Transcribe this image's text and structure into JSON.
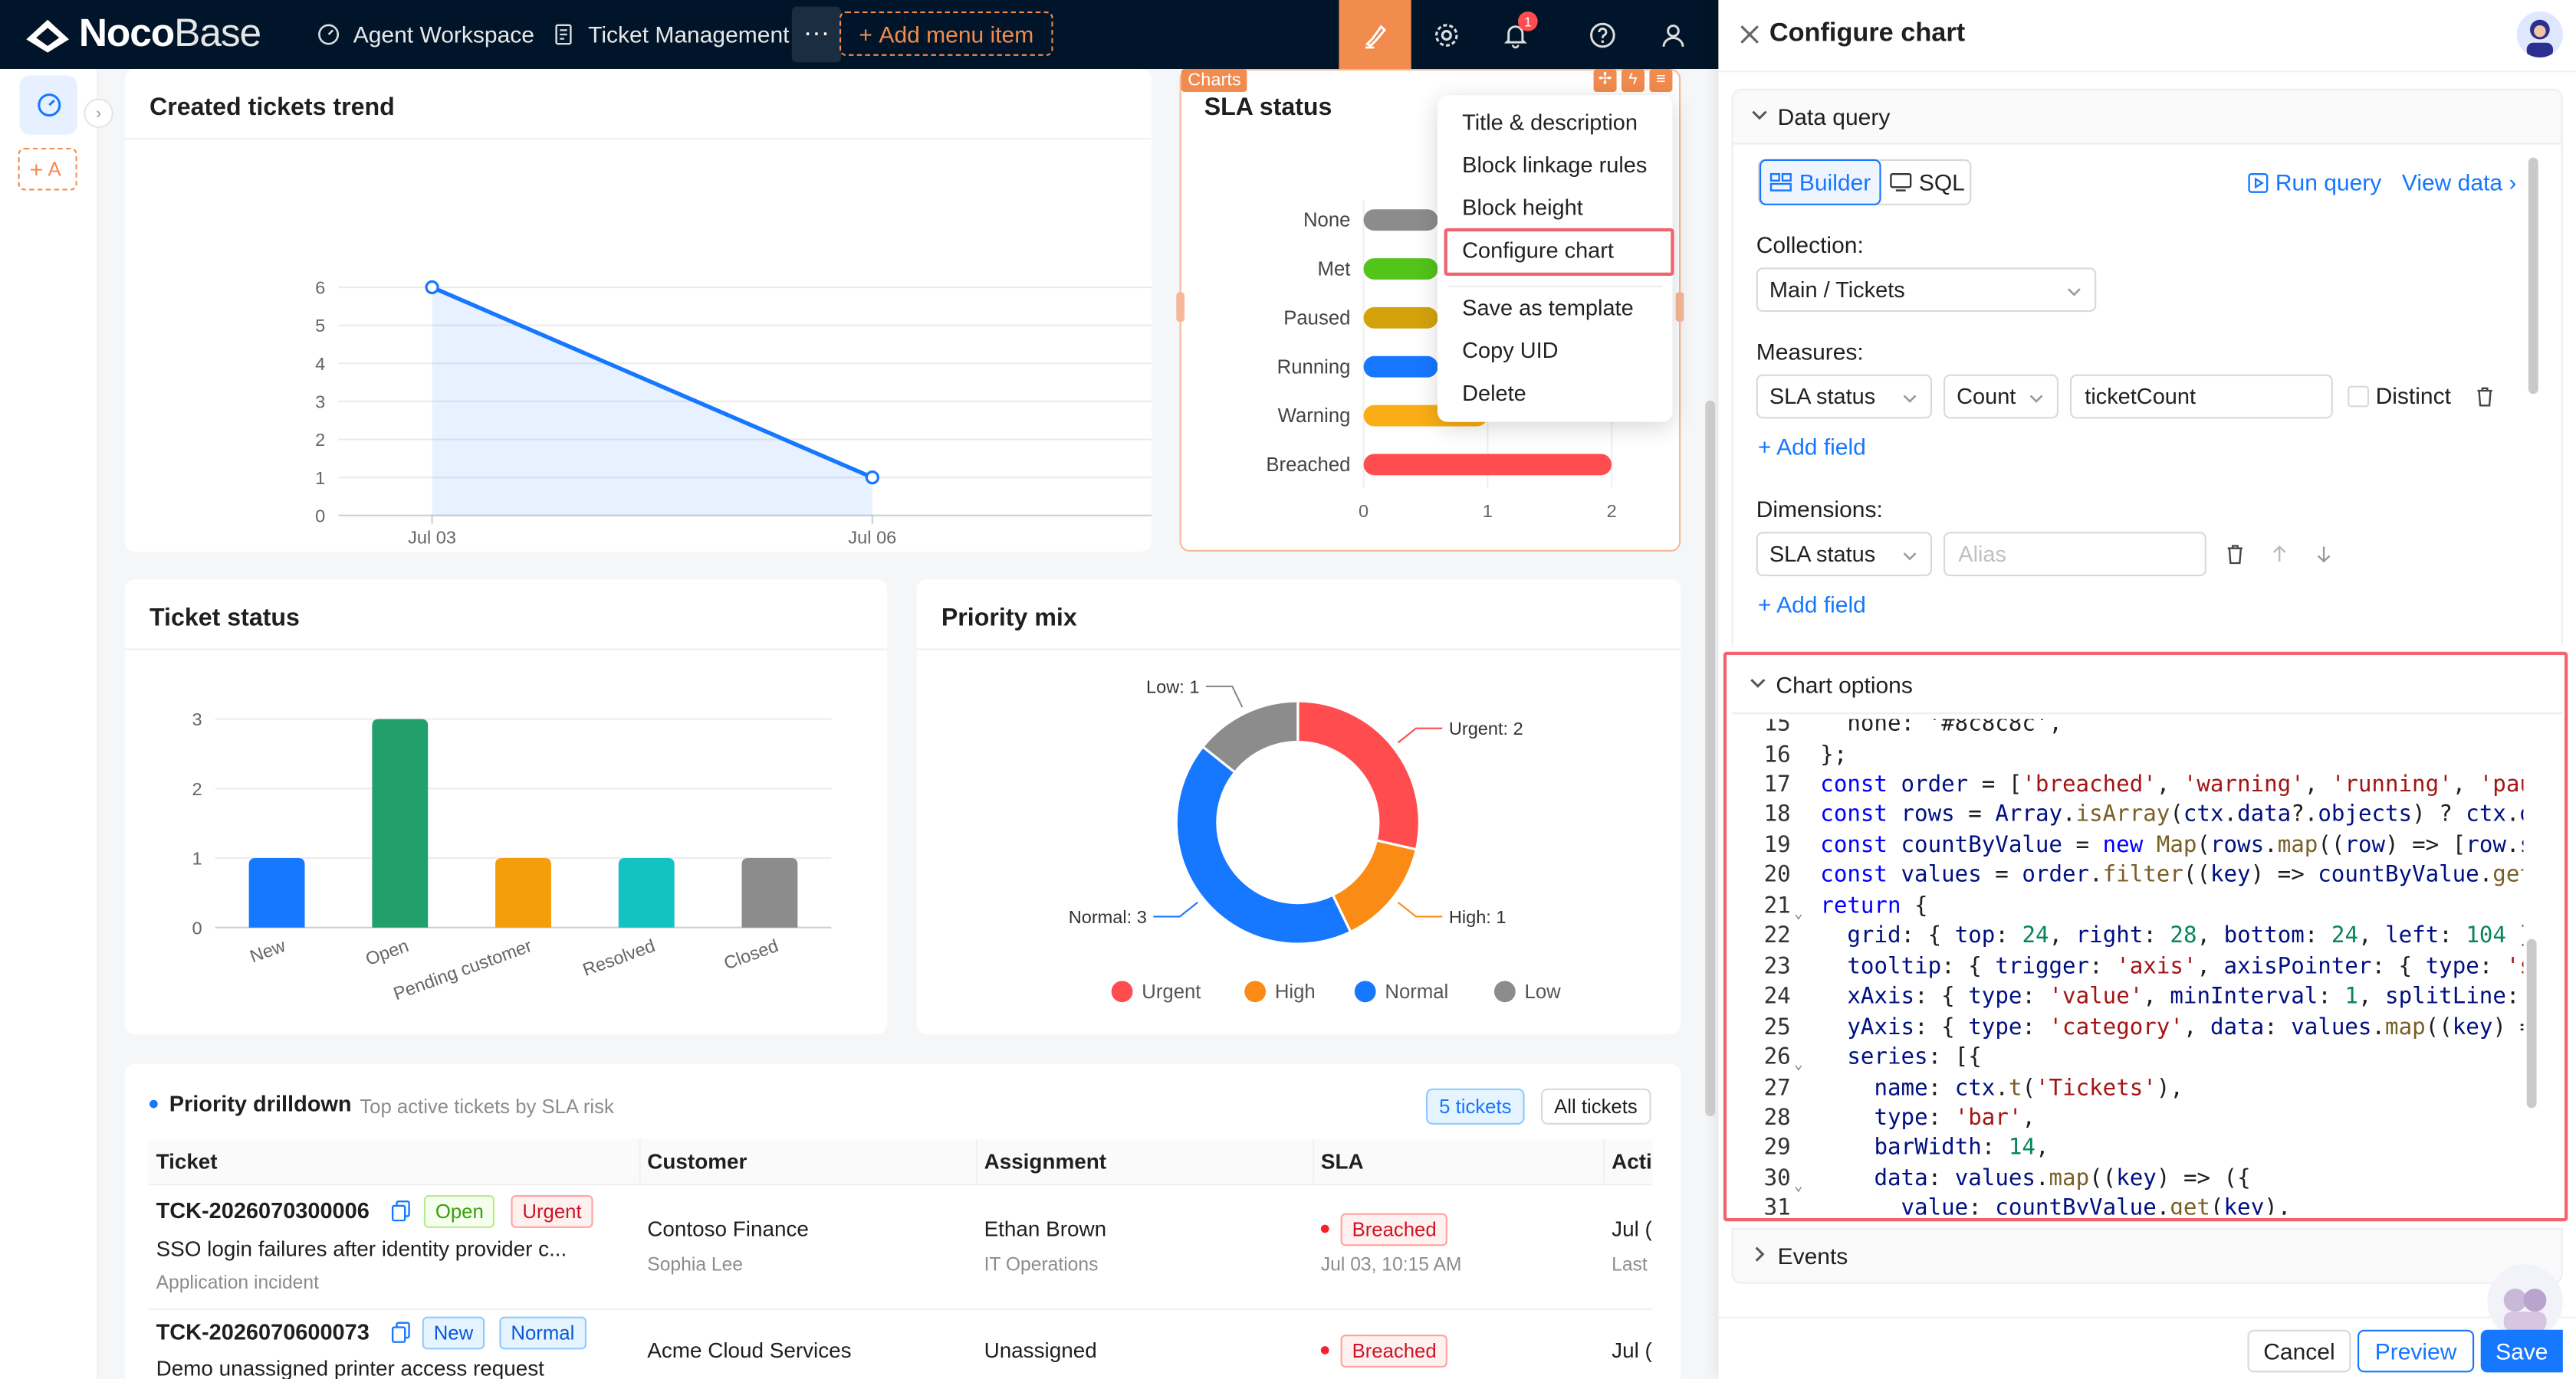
{
  "app": {
    "brand_bold": "Noco",
    "brand_light": "Base"
  },
  "nav": {
    "items": [
      {
        "label": "Agent Workspace"
      },
      {
        "label": "Ticket Management"
      }
    ],
    "more": "···",
    "add_menu_item": "Add menu item",
    "notification_count": "1"
  },
  "sidebar": {
    "add_label": "A"
  },
  "trend": {
    "title": "Created tickets trend",
    "chart_data": {
      "type": "area",
      "x": [
        "Jul 03",
        "Jul 06"
      ],
      "y": [
        6,
        1
      ],
      "ylim": [
        0,
        6
      ],
      "yticks": [
        0,
        1,
        2,
        3,
        4,
        5,
        6
      ],
      "grid": true
    }
  },
  "sla": {
    "title": "SLA status",
    "tag": "Charts",
    "chart_data": {
      "type": "bar",
      "orientation": "horizontal",
      "categories": [
        "None",
        "Met",
        "Paused",
        "Running",
        "Warning",
        "Breached"
      ],
      "values": [
        0.6,
        0.6,
        0.6,
        0.6,
        1,
        2
      ],
      "colors": [
        "#8c8c8c",
        "#52c41a",
        "#d4a30c",
        "#1677ff",
        "#faad14",
        "#ff4d4f"
      ],
      "xlim": [
        0,
        2
      ],
      "xticks": [
        0,
        1,
        2
      ]
    }
  },
  "block_menu": {
    "items": [
      "Title & description",
      "Block linkage rules",
      "Block height",
      "Configure chart",
      "Save as template",
      "Copy UID",
      "Delete"
    ],
    "highlighted": "Configure chart"
  },
  "status": {
    "title": "Ticket status",
    "chart_data": {
      "type": "bar",
      "categories": [
        "New",
        "Open",
        "Pending customer",
        "Resolved",
        "Closed"
      ],
      "values": [
        1,
        3,
        1,
        1,
        1
      ],
      "colors": [
        "#1677ff",
        "#22a06b",
        "#f59e0b",
        "#13c2c2",
        "#8c8c8c"
      ],
      "ylim": [
        0,
        3
      ],
      "yticks": [
        0,
        1,
        2,
        3
      ]
    }
  },
  "priority": {
    "title": "Priority mix",
    "chart_data": {
      "type": "pie",
      "donut": true,
      "slices": [
        {
          "name": "Urgent",
          "value": 2,
          "label": "Urgent: 2",
          "color": "#ff4d4f"
        },
        {
          "name": "High",
          "value": 1,
          "label": "High: 1",
          "color": "#fa8c16"
        },
        {
          "name": "Normal",
          "value": 3,
          "label": "Normal: 3",
          "color": "#1677ff"
        },
        {
          "name": "Low",
          "value": 1,
          "label": "Low: 1",
          "color": "#8c8c8c"
        }
      ],
      "legend": "bottom"
    }
  },
  "drilldown": {
    "title": "Priority drilldown",
    "subtitle": "Top active tickets by SLA risk",
    "count_badge": "5 tickets",
    "all_button": "All tickets",
    "columns": [
      "Ticket",
      "Customer",
      "Assignment",
      "SLA",
      "Acti"
    ],
    "rows": [
      {
        "id": "TCK-2026070300006",
        "status": "Open",
        "priority": "Urgent",
        "summary": "SSO login failures after identity provider c...",
        "category": "Application incident",
        "customer": "Contoso Finance",
        "contact": "Sophia Lee",
        "assignee": "Ethan Brown",
        "team": "IT Operations",
        "sla": "Breached",
        "sla_time": "Jul 03, 10:15 AM",
        "activity": "Jul (",
        "activity_sub": "Last"
      },
      {
        "id": "TCK-2026070600073",
        "status": "New",
        "priority": "Normal",
        "summary": "Demo unassigned printer access request",
        "customer": "Acme Cloud Services",
        "assignee": "Unassigned",
        "sla": "Breached",
        "activity": "Jul ("
      }
    ]
  },
  "panel": {
    "title": "Configure chart",
    "data_query": {
      "section": "Data query",
      "mode_builder": "Builder",
      "mode_sql": "SQL",
      "run_query": "Run query",
      "view_data": "View data",
      "collection_label": "Collection:",
      "collection_value": "Main / Tickets",
      "measures_label": "Measures:",
      "measure_field": "SLA status",
      "measure_agg": "Count",
      "measure_alias": "ticketCount",
      "distinct_label": "Distinct",
      "add_field": "Add field",
      "dimensions_label": "Dimensions:",
      "dimension_field": "SLA status",
      "dimension_alias_placeholder": "Alias",
      "add_field_2": "Add field"
    },
    "chart_options": {
      "section": "Chart options",
      "first_line": "  none: '#8c8c8c',",
      "line_numbers": [
        "15",
        "16",
        "17",
        "18",
        "19",
        "20",
        "21",
        "22",
        "23",
        "24",
        "25",
        "26",
        "27",
        "28",
        "29",
        "30",
        "31"
      ]
    },
    "events": {
      "section": "Events"
    },
    "footer": {
      "cancel": "Cancel",
      "preview": "Preview",
      "save": "Save"
    }
  },
  "colors": {
    "nav_bg": "#001529",
    "accent": "#f18b4e",
    "primary": "#1677ff",
    "highlight": "#f06470"
  }
}
